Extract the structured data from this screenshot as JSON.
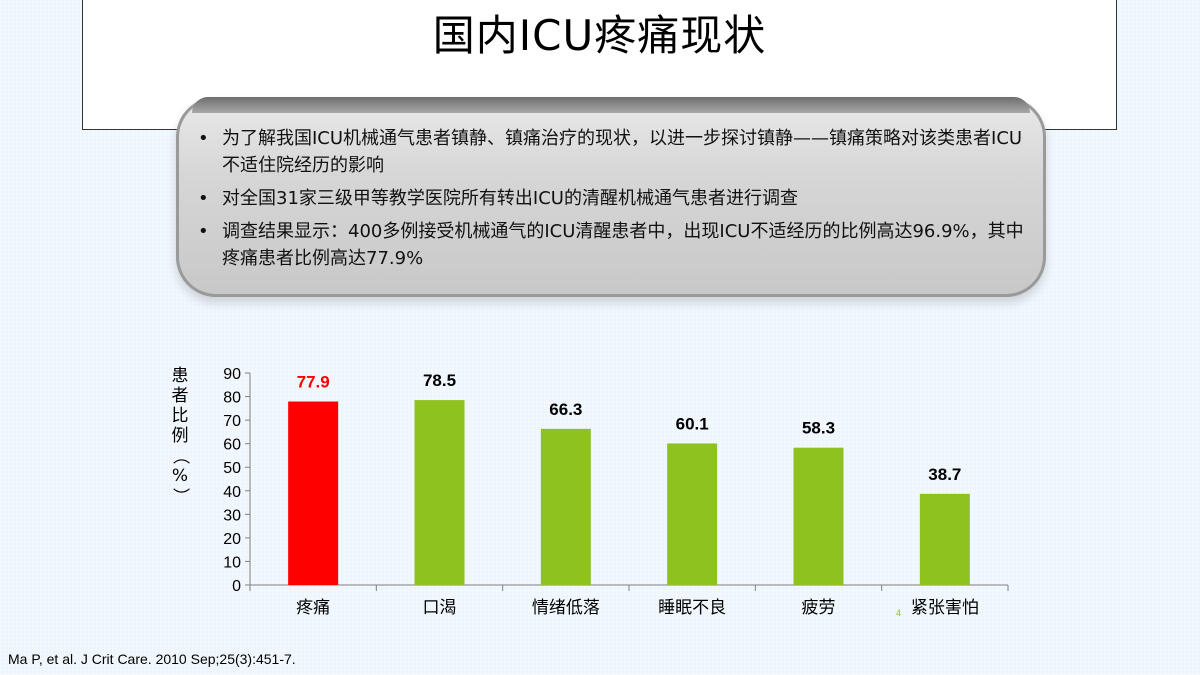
{
  "title": "国内ICU疼痛现状",
  "bullets": [
    "为了解我国ICU机械通气患者镇静、镇痛治疗的现状，以进一步探讨镇静——镇痛策略对该类患者ICU不适住院经历的影响",
    "对全国31家三级甲等教学医院所有转出ICU的清醒机械通气患者进行调查",
    "调查结果显示：400多例接受机械通气的ICU清醒患者中，出现ICU不适经历的比例高达96.9%，其中疼痛患者比例高达77.9%"
  ],
  "chart_data": {
    "type": "bar",
    "categories": [
      "疼痛",
      "口渴",
      "情绪低落",
      "睡眠不良",
      "疲劳",
      "紧张害怕"
    ],
    "values": [
      77.9,
      78.5,
      66.3,
      60.1,
      58.3,
      38.7
    ],
    "value_labels": [
      "77.9",
      "78.5",
      "66.3",
      "60.1",
      "58.3",
      "38.7"
    ],
    "bar_colors": [
      "#ff0000",
      "#8dc21f",
      "#8dc21f",
      "#8dc21f",
      "#8dc21f",
      "#8dc21f"
    ],
    "label_colors": [
      "#ff0000",
      "#000000",
      "#000000",
      "#000000",
      "#000000",
      "#000000"
    ],
    "ylabel": "患者比例（%）",
    "ylim": [
      0,
      90
    ],
    "yticks": [
      0,
      10,
      20,
      30,
      40,
      50,
      60,
      70,
      80,
      90
    ],
    "grid": false
  },
  "citation": "Ma P, et al. J Crit Care. 2010 Sep;25(3):451-7.",
  "page_number": "4"
}
